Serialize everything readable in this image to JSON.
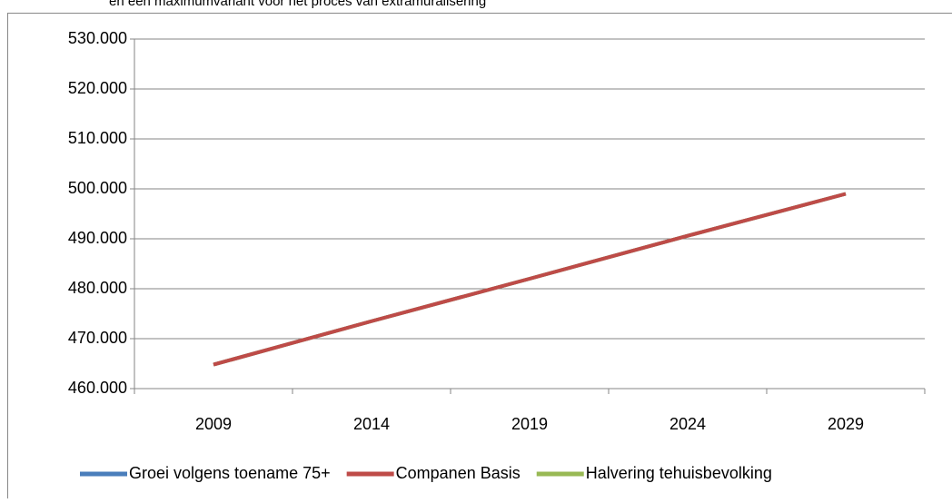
{
  "chart_data": {
    "type": "line",
    "title": "en een maximumvariant voor het proces van extramuralisering",
    "categories": [
      "2009",
      "2014",
      "2019",
      "2024",
      "2029"
    ],
    "series": [
      {
        "name": "Groei volgens toename 75+",
        "color": "#4a7ebb",
        "values": [
          464800,
          473500,
          482000,
          490600,
          499000
        ]
      },
      {
        "name": "Halvering tehuisbevolking",
        "color": "#98b954",
        "values": [
          464800,
          473500,
          482000,
          490600,
          499000
        ]
      },
      {
        "name": "Companen Basis",
        "color": "#be4b48",
        "values": [
          464800,
          473500,
          482000,
          490600,
          499000
        ]
      }
    ],
    "legend_order": [
      0,
      2,
      1
    ],
    "ylim": [
      460000,
      530000
    ],
    "yticks": [
      {
        "value": 460000,
        "label": "460.000"
      },
      {
        "value": 470000,
        "label": "470.000"
      },
      {
        "value": 480000,
        "label": "480.000"
      },
      {
        "value": 490000,
        "label": "490.000"
      },
      {
        "value": 500000,
        "label": "500.000"
      },
      {
        "value": 510000,
        "label": "510.000"
      },
      {
        "value": 520000,
        "label": "520.000"
      },
      {
        "value": 530000,
        "label": "530.000"
      }
    ],
    "grid": true,
    "legend": "bottom"
  }
}
